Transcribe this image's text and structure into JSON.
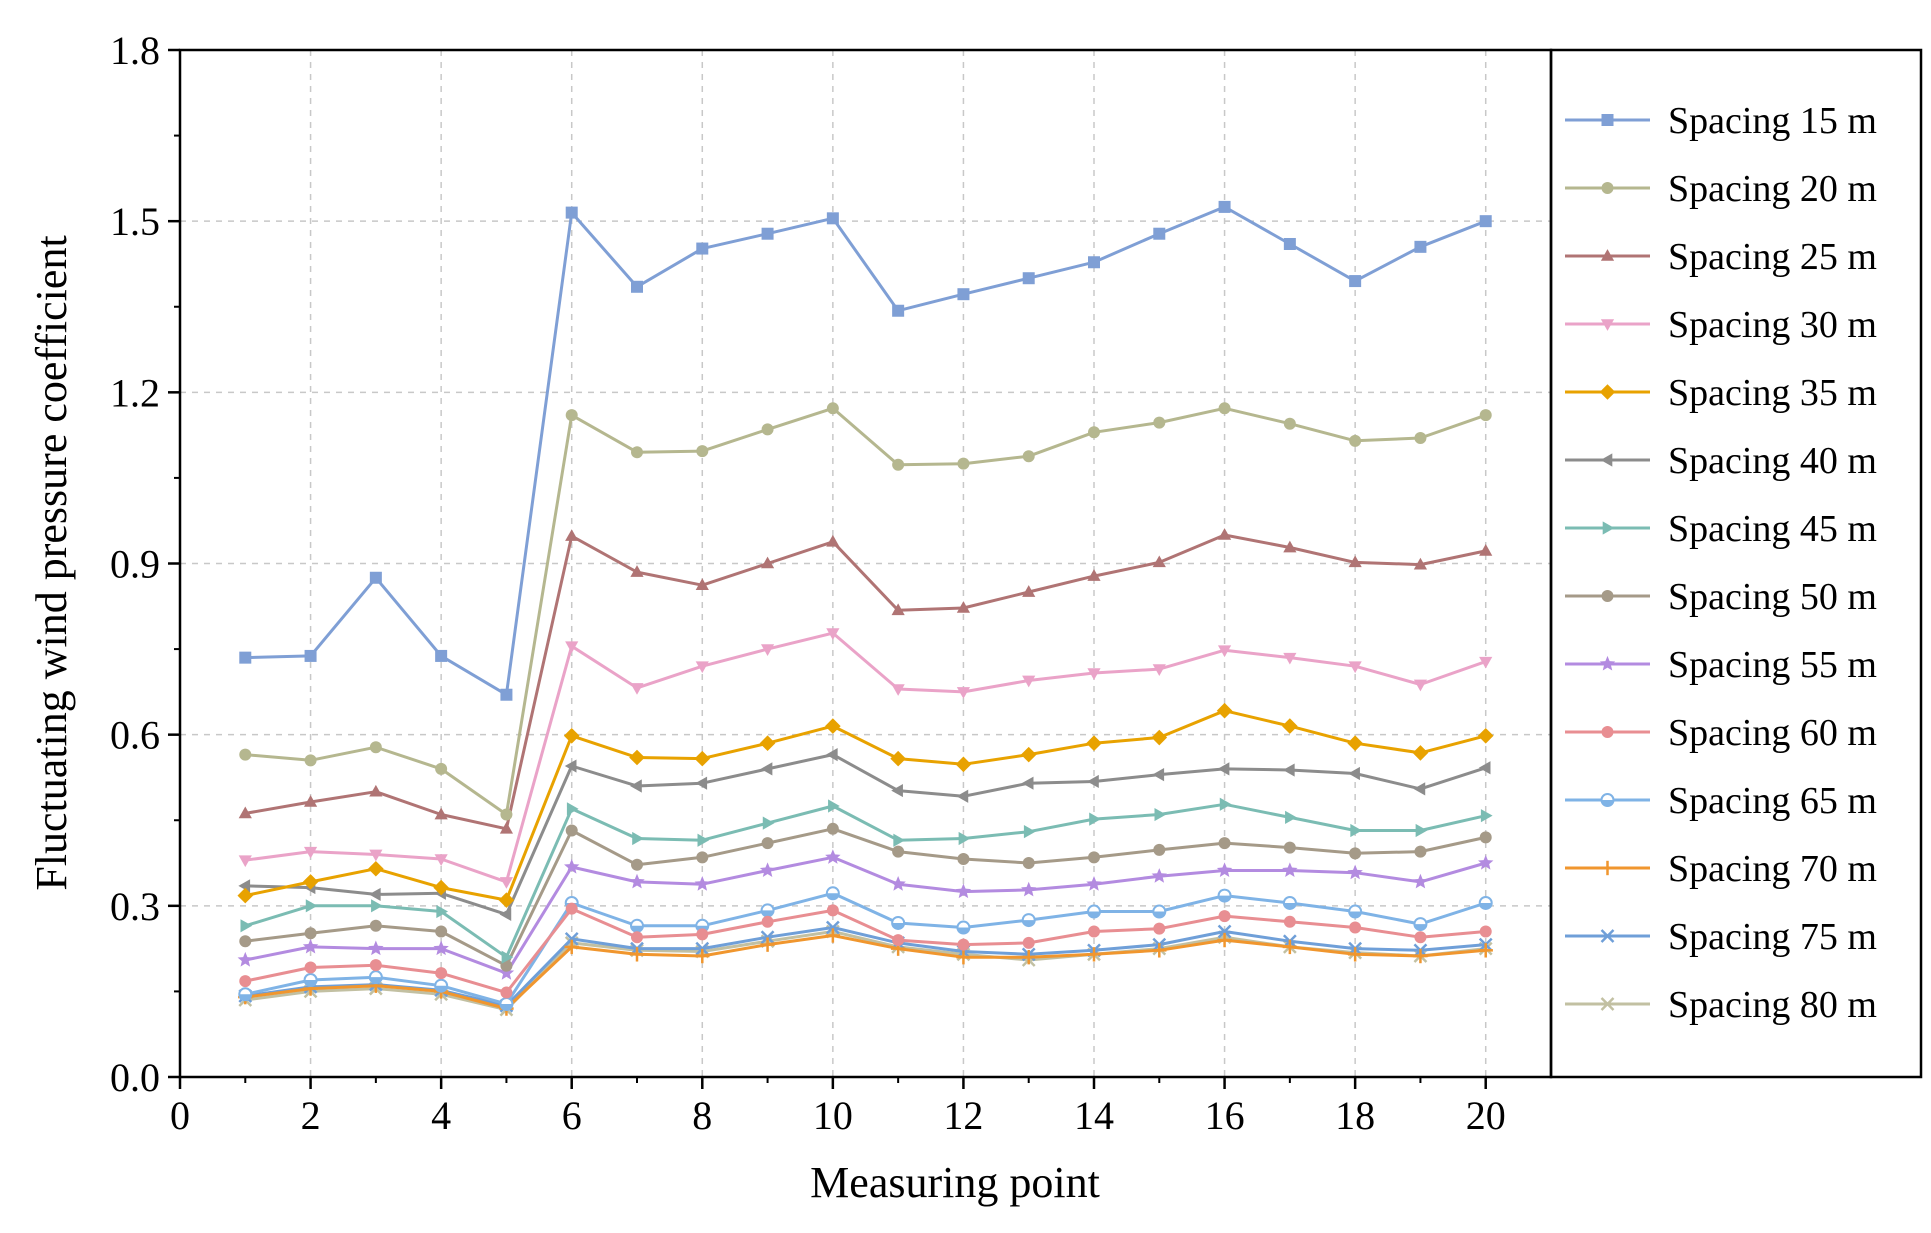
{
  "chart_data": {
    "type": "line",
    "title": "",
    "xlabel": "Measuring point",
    "ylabel": "Fluctuating wind pressure coefficient",
    "xlim": [
      0,
      21
    ],
    "ylim": [
      0,
      1.8
    ],
    "xticks": [
      0,
      2,
      4,
      6,
      8,
      10,
      12,
      14,
      16,
      18,
      20
    ],
    "yticks": [
      0.0,
      0.3,
      0.6,
      0.9,
      1.2,
      1.5,
      1.8
    ],
    "ytick_labels": [
      "0.0",
      "0.3",
      "0.6",
      "0.9",
      "1.2",
      "1.5",
      "1.8"
    ],
    "grid": true,
    "legend_position": "right",
    "x": [
      1,
      2,
      3,
      4,
      5,
      6,
      7,
      8,
      9,
      10,
      11,
      12,
      13,
      14,
      15,
      16,
      17,
      18,
      19,
      20
    ],
    "series": [
      {
        "name": "Spacing 15 m",
        "color": "#7f9fd5",
        "marker": "square",
        "values": [
          0.735,
          0.738,
          0.875,
          0.738,
          0.67,
          1.515,
          1.385,
          1.452,
          1.478,
          1.505,
          1.343,
          1.372,
          1.4,
          1.428,
          1.478,
          1.525,
          1.46,
          1.395,
          1.455,
          1.5
        ]
      },
      {
        "name": "Spacing 20 m",
        "color": "#b5b78f",
        "marker": "circle",
        "values": [
          0.565,
          0.555,
          0.578,
          0.54,
          0.46,
          1.16,
          1.095,
          1.097,
          1.135,
          1.172,
          1.073,
          1.075,
          1.088,
          1.13,
          1.147,
          1.172,
          1.145,
          1.115,
          1.12,
          1.16
        ]
      },
      {
        "name": "Spacing 25 m",
        "color": "#b07474",
        "marker": "triangle-up",
        "values": [
          0.462,
          0.482,
          0.5,
          0.46,
          0.435,
          0.948,
          0.885,
          0.862,
          0.9,
          0.938,
          0.818,
          0.822,
          0.85,
          0.878,
          0.902,
          0.95,
          0.928,
          0.902,
          0.898,
          0.922
        ]
      },
      {
        "name": "Spacing 30 m",
        "color": "#eaa3c8",
        "marker": "triangle-down",
        "values": [
          0.38,
          0.395,
          0.39,
          0.382,
          0.342,
          0.755,
          0.682,
          0.72,
          0.75,
          0.778,
          0.68,
          0.675,
          0.695,
          0.708,
          0.715,
          0.748,
          0.735,
          0.72,
          0.688,
          0.728
        ]
      },
      {
        "name": "Spacing 35 m",
        "color": "#e8a200",
        "marker": "diamond",
        "values": [
          0.318,
          0.342,
          0.365,
          0.332,
          0.31,
          0.598,
          0.56,
          0.558,
          0.585,
          0.615,
          0.558,
          0.548,
          0.565,
          0.585,
          0.595,
          0.642,
          0.615,
          0.585,
          0.568,
          0.598
        ]
      },
      {
        "name": "Spacing 40 m",
        "color": "#8c8c8c",
        "marker": "triangle-left",
        "values": [
          0.335,
          0.332,
          0.32,
          0.322,
          0.285,
          0.545,
          0.51,
          0.515,
          0.54,
          0.565,
          0.502,
          0.492,
          0.515,
          0.518,
          0.53,
          0.54,
          0.538,
          0.532,
          0.505,
          0.542
        ]
      },
      {
        "name": "Spacing 45 m",
        "color": "#7bbcb3",
        "marker": "triangle-right",
        "values": [
          0.265,
          0.3,
          0.3,
          0.29,
          0.21,
          0.47,
          0.418,
          0.415,
          0.445,
          0.475,
          0.415,
          0.418,
          0.43,
          0.452,
          0.46,
          0.478,
          0.455,
          0.432,
          0.432,
          0.458
        ]
      },
      {
        "name": "Spacing 50 m",
        "color": "#a59a88",
        "marker": "circle",
        "values": [
          0.238,
          0.252,
          0.265,
          0.255,
          0.195,
          0.432,
          0.372,
          0.385,
          0.41,
          0.435,
          0.395,
          0.382,
          0.375,
          0.385,
          0.398,
          0.41,
          0.402,
          0.392,
          0.395,
          0.42
        ]
      },
      {
        "name": "Spacing 55 m",
        "color": "#b38be0",
        "marker": "star",
        "values": [
          0.205,
          0.228,
          0.225,
          0.225,
          0.182,
          0.368,
          0.342,
          0.338,
          0.362,
          0.385,
          0.338,
          0.325,
          0.328,
          0.338,
          0.352,
          0.362,
          0.362,
          0.358,
          0.342,
          0.375
        ]
      },
      {
        "name": "Spacing 60 m",
        "color": "#e88e92",
        "marker": "circle",
        "values": [
          0.168,
          0.192,
          0.196,
          0.182,
          0.148,
          0.295,
          0.245,
          0.25,
          0.272,
          0.292,
          0.24,
          0.232,
          0.235,
          0.255,
          0.26,
          0.282,
          0.272,
          0.262,
          0.245,
          0.255
        ]
      },
      {
        "name": "Spacing 65 m",
        "color": "#7fb3e6",
        "marker": "circle-half",
        "values": [
          0.145,
          0.17,
          0.175,
          0.16,
          0.128,
          0.305,
          0.265,
          0.265,
          0.292,
          0.322,
          0.27,
          0.262,
          0.275,
          0.29,
          0.29,
          0.318,
          0.305,
          0.29,
          0.268,
          0.305
        ]
      },
      {
        "name": "Spacing 70 m",
        "color": "#f0962e",
        "marker": "plus",
        "values": [
          0.14,
          0.155,
          0.16,
          0.15,
          0.12,
          0.228,
          0.215,
          0.212,
          0.232,
          0.248,
          0.225,
          0.21,
          0.21,
          0.215,
          0.222,
          0.24,
          0.228,
          0.215,
          0.212,
          0.222
        ]
      },
      {
        "name": "Spacing 75 m",
        "color": "#6f9fd8",
        "marker": "x",
        "values": [
          0.142,
          0.158,
          0.162,
          0.152,
          0.125,
          0.242,
          0.225,
          0.225,
          0.245,
          0.262,
          0.235,
          0.22,
          0.215,
          0.222,
          0.232,
          0.255,
          0.238,
          0.225,
          0.222,
          0.232
        ]
      },
      {
        "name": "Spacing 80 m",
        "color": "#c2c0a2",
        "marker": "x",
        "values": [
          0.135,
          0.15,
          0.155,
          0.145,
          0.118,
          0.235,
          0.222,
          0.22,
          0.238,
          0.255,
          0.228,
          0.215,
          0.205,
          0.215,
          0.225,
          0.245,
          0.228,
          0.218,
          0.212,
          0.225
        ]
      }
    ]
  }
}
